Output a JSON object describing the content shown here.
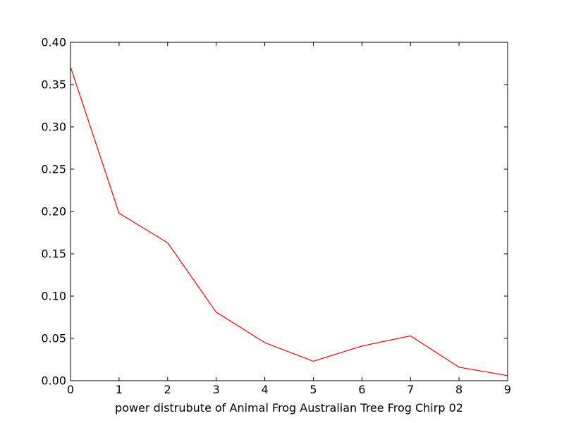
{
  "chart_data": {
    "type": "line",
    "title": "",
    "xlabel": "power distrubute of Animal Frog Australian Tree Frog Chirp 02",
    "ylabel": "",
    "xlim": [
      0,
      9
    ],
    "ylim": [
      0,
      0.4
    ],
    "x_ticks": [
      0,
      1,
      2,
      3,
      4,
      5,
      6,
      7,
      8,
      9
    ],
    "x_tick_labels": [
      "0",
      "1",
      "2",
      "3",
      "4",
      "5",
      "6",
      "7",
      "8",
      "9"
    ],
    "y_ticks": [
      0,
      0.05,
      0.1,
      0.15,
      0.2,
      0.25,
      0.3,
      0.35,
      0.4
    ],
    "y_tick_labels": [
      "0.00",
      "0.05",
      "0.10",
      "0.15",
      "0.20",
      "0.25",
      "0.30",
      "0.35",
      "0.40"
    ],
    "grid": false,
    "series": [
      {
        "color": "#ff0000",
        "x": [
          0,
          1,
          2,
          3,
          4,
          5,
          6,
          7,
          8,
          9
        ],
        "y": [
          0.371,
          0.198,
          0.163,
          0.081,
          0.045,
          0.023,
          0.041,
          0.053,
          0.016,
          0.006
        ]
      }
    ]
  }
}
